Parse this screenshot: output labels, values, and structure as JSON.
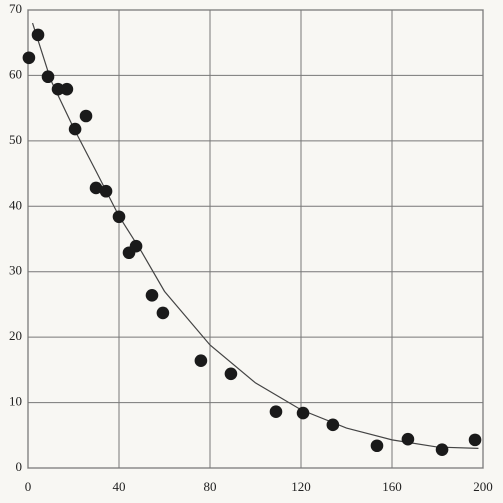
{
  "chart_data": {
    "type": "scatter",
    "x": [
      0.4,
      4.4,
      8.8,
      13.2,
      17.1,
      20.7,
      25.5,
      29.9,
      34.3,
      40,
      44.4,
      47.5,
      54.5,
      59.3,
      76,
      89.2,
      109,
      120.9,
      134,
      153.4,
      167,
      182,
      196.5
    ],
    "values": [
      62.7,
      66.2,
      59.8,
      57.9,
      57.9,
      51.8,
      53.8,
      42.8,
      42.3,
      38.4,
      32.9,
      33.9,
      26.4,
      23.7,
      16.4,
      14.4,
      8.6,
      8.4,
      6.6,
      3.4,
      4.4,
      2.8,
      4.3
    ],
    "color": "#1a1a1a",
    "curve": {
      "x": [
        2,
        10,
        20,
        30,
        40,
        50,
        60,
        80,
        100,
        120,
        140,
        160,
        180,
        198
      ],
      "y": [
        68,
        59.3,
        52,
        45.3,
        38.5,
        33,
        27,
        18.8,
        13,
        8.9,
        6.1,
        4.3,
        3.2,
        3
      ],
      "color": "#444444"
    },
    "xlim": [
      0,
      200
    ],
    "xticks": [
      0,
      40,
      80,
      120,
      160,
      200
    ],
    "ylim": [
      0,
      70
    ],
    "yticks": [
      0,
      10,
      20,
      30,
      40,
      50,
      60,
      70
    ],
    "grid": true
  }
}
